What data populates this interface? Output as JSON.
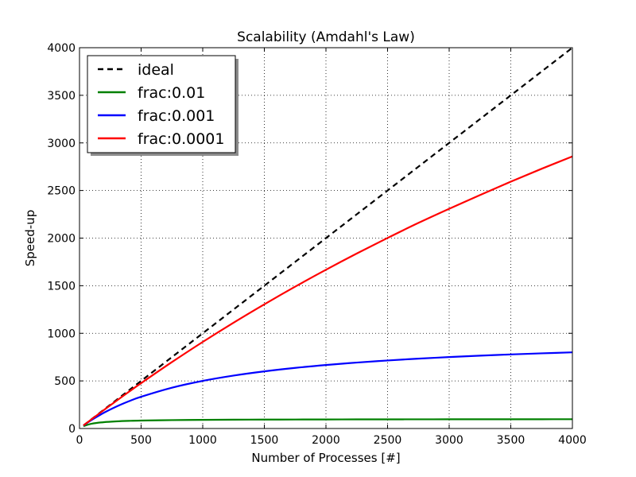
{
  "chart_data": {
    "type": "line",
    "title": "Scalability (Amdahl's Law)",
    "xlabel": "Number of Processes [#]",
    "ylabel": "Speed-up",
    "xlim": [
      0,
      4000
    ],
    "ylim": [
      0,
      4000
    ],
    "x_ticks": [
      0,
      500,
      1000,
      1500,
      2000,
      2500,
      3000,
      3500,
      4000
    ],
    "y_ticks": [
      0,
      500,
      1000,
      1500,
      2000,
      2500,
      3000,
      3500,
      4000
    ],
    "grid": true,
    "legend_position": "top-left",
    "x": [
      32,
      100,
      200,
      300,
      400,
      500,
      750,
      1000,
      1250,
      1500,
      1750,
      2000,
      2250,
      2500,
      2750,
      3000,
      3250,
      3500,
      3750,
      4000
    ],
    "series": [
      {
        "name": "ideal",
        "color": "#000000",
        "dash": "dashed",
        "values": [
          32,
          100,
          200,
          300,
          400,
          500,
          750,
          1000,
          1250,
          1500,
          1750,
          2000,
          2250,
          2500,
          2750,
          3000,
          3250,
          3500,
          3750,
          4000
        ]
      },
      {
        "name": "frac:0.01",
        "color": "#008000",
        "dash": "solid",
        "values": [
          24.4,
          50.3,
          66.9,
          75.2,
          80.2,
          83.5,
          88.3,
          91.0,
          92.6,
          93.8,
          94.6,
          95.3,
          95.8,
          96.2,
          96.5,
          96.8,
          97.1,
          97.3,
          97.4,
          97.6
        ]
      },
      {
        "name": "frac:0.001",
        "color": "#0000ff",
        "dash": "solid",
        "values": [
          31.0,
          91.0,
          166.8,
          231.0,
          286.0,
          333.6,
          428.8,
          500.3,
          555.8,
          600.2,
          636.6,
          667.0,
          692.6,
          714.5,
          733.6,
          750.2,
          764.9,
          778.0,
          789.6,
          800.0
        ]
      },
      {
        "name": "frac:0.0001",
        "color": "#ff0000",
        "dash": "solid",
        "values": [
          31.9,
          99.0,
          196.1,
          291.3,
          384.8,
          476.4,
          697.5,
          909.2,
          1111.3,
          1304.4,
          1489.9,
          1667.5,
          1837.9,
          2001.7,
          2159.3,
          2308.0,
          2452.3,
          2593.0,
          2728.0,
          2858.0
        ]
      }
    ]
  }
}
